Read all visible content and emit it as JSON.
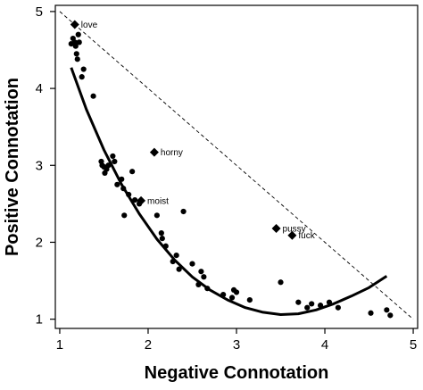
{
  "chart_data": {
    "type": "scatter",
    "xlabel": "Negative Connotation",
    "ylabel": "Positive Connotation",
    "xlim": [
      0.95,
      5.05
    ],
    "ylim": [
      0.88,
      5.08
    ],
    "xticks": [
      1,
      2,
      3,
      4,
      5
    ],
    "yticks": [
      1,
      2,
      3,
      4,
      5
    ],
    "grid": false,
    "legend": "none",
    "points": [
      [
        1.13,
        4.58
      ],
      [
        1.15,
        4.65
      ],
      [
        1.17,
        4.6
      ],
      [
        1.18,
        4.55
      ],
      [
        1.19,
        4.45
      ],
      [
        1.2,
        4.38
      ],
      [
        1.21,
        4.7
      ],
      [
        1.22,
        4.6
      ],
      [
        1.25,
        4.15
      ],
      [
        1.27,
        4.25
      ],
      [
        1.38,
        3.9
      ],
      [
        1.47,
        3.05
      ],
      [
        1.48,
        3.0
      ],
      [
        1.5,
        2.98
      ],
      [
        1.51,
        2.9
      ],
      [
        1.53,
        2.95
      ],
      [
        1.55,
        3.0
      ],
      [
        1.6,
        3.12
      ],
      [
        1.62,
        3.05
      ],
      [
        1.65,
        2.75
      ],
      [
        1.7,
        2.82
      ],
      [
        1.72,
        2.7
      ],
      [
        1.73,
        2.35
      ],
      [
        1.78,
        2.62
      ],
      [
        1.82,
        2.92
      ],
      [
        1.85,
        2.55
      ],
      [
        1.9,
        2.5
      ],
      [
        2.1,
        2.35
      ],
      [
        2.15,
        2.12
      ],
      [
        2.16,
        2.05
      ],
      [
        2.2,
        1.95
      ],
      [
        2.28,
        1.75
      ],
      [
        2.32,
        1.83
      ],
      [
        2.35,
        1.65
      ],
      [
        2.4,
        2.4
      ],
      [
        2.5,
        1.72
      ],
      [
        2.57,
        1.45
      ],
      [
        2.6,
        1.62
      ],
      [
        2.63,
        1.55
      ],
      [
        2.67,
        1.4
      ],
      [
        2.85,
        1.32
      ],
      [
        2.95,
        1.28
      ],
      [
        2.97,
        1.38
      ],
      [
        3.0,
        1.35
      ],
      [
        3.15,
        1.25
      ],
      [
        3.5,
        1.48
      ],
      [
        3.7,
        1.22
      ],
      [
        3.8,
        1.15
      ],
      [
        3.85,
        1.2
      ],
      [
        3.95,
        1.18
      ],
      [
        4.05,
        1.22
      ],
      [
        4.15,
        1.15
      ],
      [
        4.52,
        1.08
      ],
      [
        4.7,
        1.12
      ],
      [
        4.74,
        1.05
      ]
    ],
    "fit_curve": [
      [
        1.13,
        4.27
      ],
      [
        1.3,
        3.73
      ],
      [
        1.5,
        3.2
      ],
      [
        1.7,
        2.75
      ],
      [
        1.9,
        2.37
      ],
      [
        2.1,
        2.04
      ],
      [
        2.3,
        1.77
      ],
      [
        2.5,
        1.55
      ],
      [
        2.7,
        1.38
      ],
      [
        2.9,
        1.25
      ],
      [
        3.1,
        1.15
      ],
      [
        3.3,
        1.09
      ],
      [
        3.5,
        1.06
      ],
      [
        3.7,
        1.07
      ],
      [
        3.9,
        1.12
      ],
      [
        4.1,
        1.2
      ],
      [
        4.3,
        1.3
      ],
      [
        4.5,
        1.41
      ],
      [
        4.7,
        1.56
      ]
    ],
    "reference_line": [
      [
        1.0,
        5.0
      ],
      [
        5.0,
        1.0
      ]
    ],
    "highlighted": [
      {
        "label": "love",
        "x": 1.17,
        "y": 4.83
      },
      {
        "label": "horny",
        "x": 2.07,
        "y": 3.17
      },
      {
        "label": "moist",
        "x": 1.92,
        "y": 2.54
      },
      {
        "label": "pussy",
        "x": 3.45,
        "y": 2.18
      },
      {
        "label": "fuck",
        "x": 3.63,
        "y": 2.09
      }
    ]
  }
}
